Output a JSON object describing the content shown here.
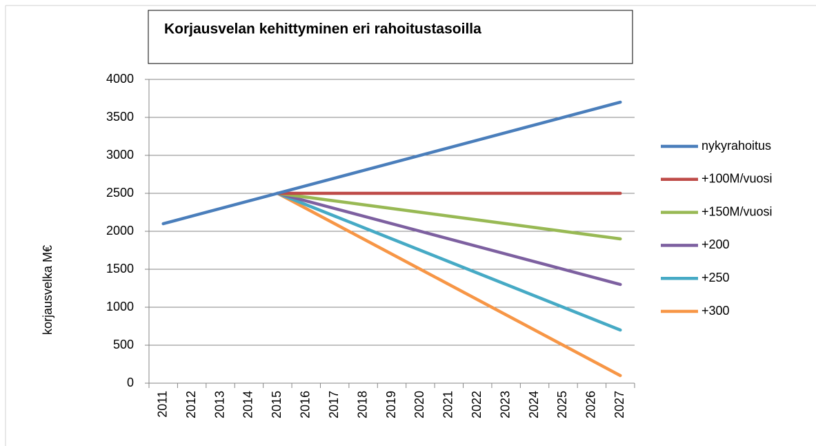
{
  "chart_data": {
    "type": "line",
    "title": "Korjausvelan kehittyminen eri rahoitustasoilla",
    "y_label": "korjausvelka M€",
    "categories": [
      "2011",
      "2012",
      "2013",
      "2014",
      "2015",
      "2016",
      "2017",
      "2018",
      "2019",
      "2020",
      "2021",
      "2022",
      "2023",
      "2024",
      "2025",
      "2026",
      "2027"
    ],
    "series": [
      {
        "name": "nykyrahoitus",
        "color": "#4a7ebb",
        "values": [
          2100,
          2200,
          2300,
          2400,
          2500,
          2600,
          2700,
          2800,
          2900,
          3000,
          3100,
          3200,
          3300,
          3400,
          3500,
          3600,
          3700
        ]
      },
      {
        "name": "+100M/vuosi",
        "color": "#be4b48",
        "values": [
          null,
          null,
          null,
          null,
          2500,
          2500,
          2500,
          2500,
          2500,
          2500,
          2500,
          2500,
          2500,
          2500,
          2500,
          2500,
          2500
        ]
      },
      {
        "name": "+150M/vuosi",
        "color": "#98b954",
        "values": [
          null,
          null,
          null,
          null,
          2500,
          2450,
          2400,
          2350,
          2300,
          2250,
          2200,
          2150,
          2100,
          2050,
          2000,
          1950,
          1900
        ]
      },
      {
        "name": "+200",
        "color": "#7d60a0",
        "values": [
          null,
          null,
          null,
          null,
          2500,
          2400,
          2300,
          2200,
          2100,
          2000,
          1900,
          1800,
          1700,
          1600,
          1500,
          1400,
          1300
        ]
      },
      {
        "name": "+250",
        "color": "#46aac5",
        "values": [
          null,
          null,
          null,
          null,
          2500,
          2350,
          2200,
          2050,
          1900,
          1750,
          1600,
          1450,
          1300,
          1150,
          1000,
          850,
          700
        ]
      },
      {
        "name": "+300",
        "color": "#f79646",
        "values": [
          null,
          null,
          null,
          null,
          2500,
          2300,
          2100,
          1900,
          1700,
          1500,
          1300,
          1100,
          900,
          700,
          500,
          300,
          100
        ]
      }
    ],
    "ylim": [
      0,
      4000
    ],
    "yticks": [
      0,
      500,
      1000,
      1500,
      2000,
      2500,
      3000,
      3500,
      4000
    ],
    "grid": true,
    "legend": "right"
  }
}
